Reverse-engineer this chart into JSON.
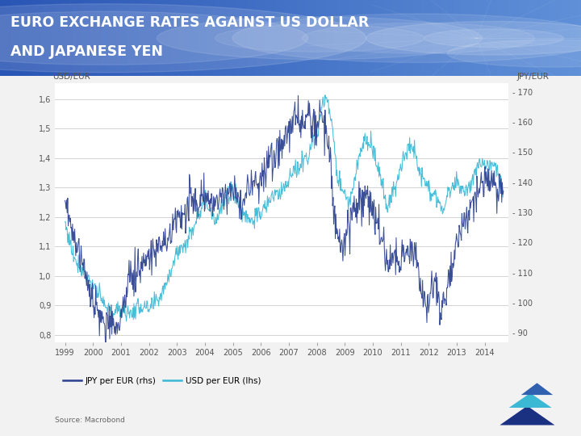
{
  "title_line1": "EURO EXCHANGE RATES AGAINST US DOLLAR",
  "title_line2": "AND JAPANESE YEN",
  "title_bg_left": "#2f5ec4",
  "title_bg_right": "#5b8dd9",
  "chart_bg_color": "#ffffff",
  "outer_bg_color": "#f2f2f2",
  "usd_color": "#3ab8d4",
  "jpy_color": "#2a3f8f",
  "left_ylabel": "USD/EUR",
  "right_ylabel": "JPY/EUR",
  "legend_jpy": "JPY per EUR (rhs)",
  "legend_usd": "USD per EUR (lhs)",
  "source": "Source: Macrobond",
  "usd_ylim": [
    0.775,
    1.655
  ],
  "jpy_ylim": [
    86.9,
    173
  ],
  "usd_yticks": [
    0.8,
    0.9,
    1.0,
    1.1,
    1.2,
    1.3,
    1.4,
    1.5,
    1.6
  ],
  "jpy_yticks": [
    90,
    100,
    110,
    120,
    130,
    140,
    150,
    160,
    170
  ],
  "usd_yticklabels": [
    "0,8",
    "0,9",
    "1,0",
    "1,1",
    "1,2",
    "1,3",
    "1,4",
    "1,5",
    "1,6"
  ],
  "jpy_yticklabels": [
    "- 90",
    "- 100",
    "- 110",
    "- 120",
    "- 130",
    "- 140",
    "- 150",
    "- 160",
    "- 170"
  ],
  "xticks": [
    1999,
    2000,
    2001,
    2002,
    2003,
    2004,
    2005,
    2006,
    2007,
    2008,
    2009,
    2010,
    2011,
    2012,
    2013,
    2014
  ],
  "grid_color": "#cccccc",
  "tick_color": "#555555",
  "accent_color": "#3ab8d4",
  "accent_bar_color": "#4fc3d8"
}
